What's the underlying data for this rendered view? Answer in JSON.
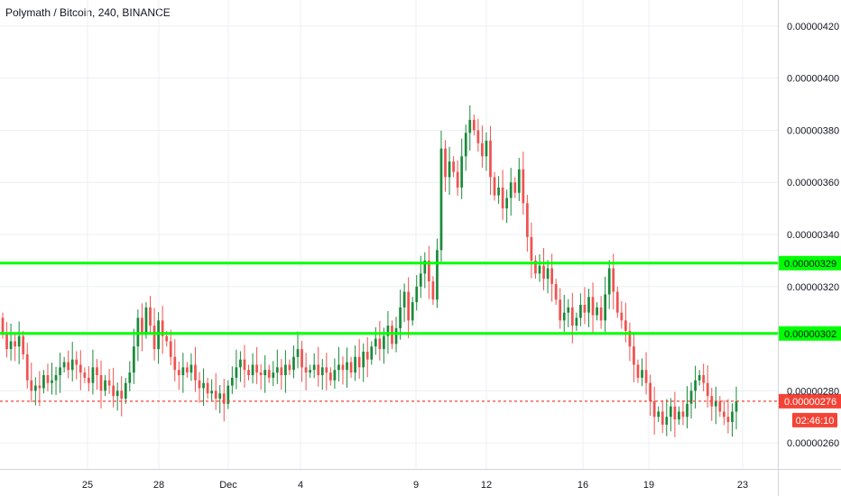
{
  "header": {
    "title": "Polymath / Bitcoin, 240, BINANCE"
  },
  "colors": {
    "up": "#26a69a",
    "up_body": "#1b8a3c",
    "down": "#ef5350",
    "level": "#00ff00",
    "current": "#f44336",
    "grid": "#eceff2",
    "axis": "#d1d4dc"
  },
  "chart_data": {
    "type": "candlestick",
    "title": "Polymath / Bitcoin, 240, BINANCE",
    "ylim": [
      2.5e-06,
      4.3e-06
    ],
    "y_ticks": [
      {
        "value": 4.2e-06,
        "label": "0.00000420"
      },
      {
        "value": 4e-06,
        "label": "0.00000400"
      },
      {
        "value": 3.8e-06,
        "label": "0.00000380"
      },
      {
        "value": 3.6e-06,
        "label": "0.00000360"
      },
      {
        "value": 3.4e-06,
        "label": "0.00000340"
      },
      {
        "value": 3.2e-06,
        "label": "0.00000320"
      },
      {
        "value": 2.8e-06,
        "label": "0.00000280"
      },
      {
        "value": 2.6e-06,
        "label": "0.00000260"
      }
    ],
    "x_ticks": [
      "25",
      "28",
      "Dec",
      "4",
      "9",
      "12",
      "16",
      "19",
      "23"
    ],
    "levels": [
      {
        "value": 3.29e-06,
        "label": "0.00000329"
      },
      {
        "value": 3.02e-06,
        "label": "0.00000302"
      }
    ],
    "current_price": {
      "value": 2.76e-06,
      "label": "0.00000276",
      "countdown": "02:46:10"
    },
    "grid": true,
    "candles_close_per_bar": [
      3.02,
      2.96,
      2.99,
      2.97,
      3.01,
      2.94,
      2.84,
      2.8,
      2.82,
      2.81,
      2.86,
      2.83,
      2.84,
      2.86,
      2.89,
      2.91,
      2.88,
      2.92,
      2.9,
      2.87,
      2.85,
      2.83,
      2.89,
      2.86,
      2.8,
      2.84,
      2.82,
      2.78,
      2.8,
      2.77,
      2.83,
      2.87,
      2.97,
      3.08,
      3.02,
      3.12,
      3.05,
      2.96,
      3.07,
      3.01,
      2.99,
      2.93,
      2.88,
      2.86,
      2.89,
      2.87,
      2.9,
      2.84,
      2.81,
      2.83,
      2.79,
      2.8,
      2.77,
      2.79,
      2.75,
      2.82,
      2.85,
      2.89,
      2.92,
      2.88,
      2.86,
      2.9,
      2.87,
      2.86,
      2.88,
      2.85,
      2.87,
      2.89,
      2.86,
      2.9,
      2.88,
      2.93,
      2.96,
      2.89,
      2.87,
      2.88,
      2.9,
      2.86,
      2.89,
      2.87,
      2.84,
      2.88,
      2.9,
      2.88,
      2.91,
      2.87,
      2.93,
      2.89,
      2.95,
      2.92,
      2.97,
      3.0,
      2.96,
      3.01,
      3.05,
      2.98,
      3.04,
      3.12,
      3.18,
      3.07,
      3.14,
      3.2,
      3.25,
      3.3,
      3.22,
      3.15,
      3.34,
      3.73,
      3.62,
      3.68,
      3.64,
      3.58,
      3.7,
      3.79,
      3.84,
      3.8,
      3.75,
      3.7,
      3.76,
      3.62,
      3.55,
      3.58,
      3.5,
      3.54,
      3.6,
      3.56,
      3.65,
      3.52,
      3.39,
      3.3,
      3.25,
      3.28,
      3.23,
      3.27,
      3.21,
      3.15,
      3.07,
      3.1,
      3.12,
      3.05,
      3.08,
      3.13,
      3.1,
      3.16,
      3.09,
      3.12,
      3.07,
      3.17,
      3.27,
      3.18,
      3.1,
      3.07,
      3.03,
      2.97,
      2.9,
      2.85,
      2.88,
      2.83,
      2.76,
      2.7,
      2.72,
      2.67,
      2.7,
      2.74,
      2.69,
      2.72,
      2.7,
      2.75,
      2.8,
      2.84,
      2.86,
      2.83,
      2.78,
      2.74,
      2.76,
      2.72,
      2.7,
      2.68,
      2.72,
      2.76
    ]
  }
}
